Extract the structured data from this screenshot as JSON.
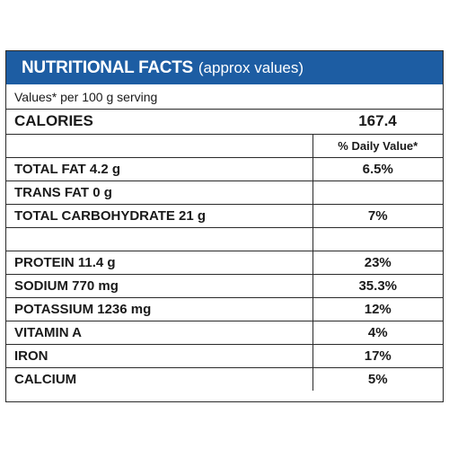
{
  "header": {
    "title_bold": "NUTRITIONAL FACTS",
    "title_light": "(approx values)",
    "background_color": "#1d5da3"
  },
  "subheading": "Values* per 100 g serving",
  "calories": {
    "label": "CALORIES",
    "value": "167.4"
  },
  "daily_value_header": "% Daily Value*",
  "rows": [
    {
      "label": "TOTAL FAT  4.2 g",
      "value": "6.5%"
    },
    {
      "label": "TRANS FAT  0 g",
      "value": ""
    },
    {
      "label": "TOTAL CARBOHYDRATE  21 g",
      "value": "7%"
    },
    {
      "label": "",
      "value": ""
    },
    {
      "label": "PROTEIN  11.4 g",
      "value": "23%"
    },
    {
      "label": "SODIUM  770 mg",
      "value": "35.3%"
    },
    {
      "label": "POTASSIUM  1236 mg",
      "value": "12%"
    },
    {
      "label": "VITAMIN A",
      "value": "4%"
    },
    {
      "label": "IRON",
      "value": "17%"
    },
    {
      "label": "CALCIUM",
      "value": "5%"
    }
  ]
}
